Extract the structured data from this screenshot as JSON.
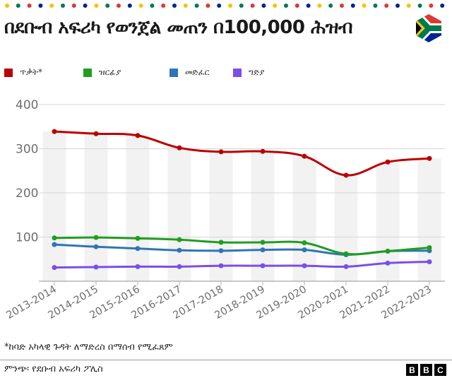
{
  "header": {
    "title": "በደቡብ አፍሪካ የወንጀል መጠን በ100,000 ሕዝብ",
    "flag_icon": "south-africa-flag-icon",
    "dot_colors": [
      "#f5c400",
      "#007a4d",
      "#de3831",
      "#002395"
    ]
  },
  "legend": {
    "items": [
      {
        "label": "ጥቃት*",
        "color": "#bb0000"
      },
      {
        "label": "ዝርፊያ",
        "color": "#1f9e1f"
      },
      {
        "label": "መድፈር",
        "color": "#2e75b6"
      },
      {
        "label": "ግድያ",
        "color": "#7a4fe8"
      }
    ]
  },
  "chart_data": {
    "type": "line",
    "title": "በደቡብ አፍሪካ የወንጀል መጠን በ100,000 ሕዝብ",
    "xlabel": "",
    "ylabel": "",
    "ylim": [
      0,
      400
    ],
    "yticks": [
      100,
      200,
      300,
      400
    ],
    "grid": true,
    "legend_position": "top",
    "categories": [
      "2013-2014",
      "2014-2015",
      "2015-2016",
      "2016-2017",
      "2017-2018",
      "2018-2019",
      "2019-2020",
      "2020-2021",
      "2021-2022",
      "2022-2023"
    ],
    "background_bars_series": "ጥቃት*",
    "series": [
      {
        "name": "ጥቃት*",
        "color": "#bb0000",
        "values": [
          339,
          334,
          330,
          302,
          293,
          294,
          283,
          240,
          270,
          278
        ]
      },
      {
        "name": "ዝርፊያ",
        "color": "#1f9e1f",
        "values": [
          98,
          99,
          97,
          94,
          88,
          88,
          87,
          62,
          68,
          76
        ]
      },
      {
        "name": "መድፈር",
        "color": "#2e75b6",
        "values": [
          83,
          78,
          74,
          70,
          69,
          71,
          71,
          60,
          68,
          69
        ]
      },
      {
        "name": "ግድያ",
        "color": "#7a4fe8",
        "values": [
          31,
          32,
          33,
          33,
          35,
          35,
          35,
          33,
          41,
          44
        ]
      }
    ]
  },
  "footer": {
    "footnote": "*ከባድ አካላዊ ጉዳት ለማድረስ በማሰብ የሚፈጸም",
    "source": "ምንጭ፡ የደቡብ አፍሪካ ፖሊስ",
    "logo": [
      "B",
      "B",
      "C"
    ]
  }
}
